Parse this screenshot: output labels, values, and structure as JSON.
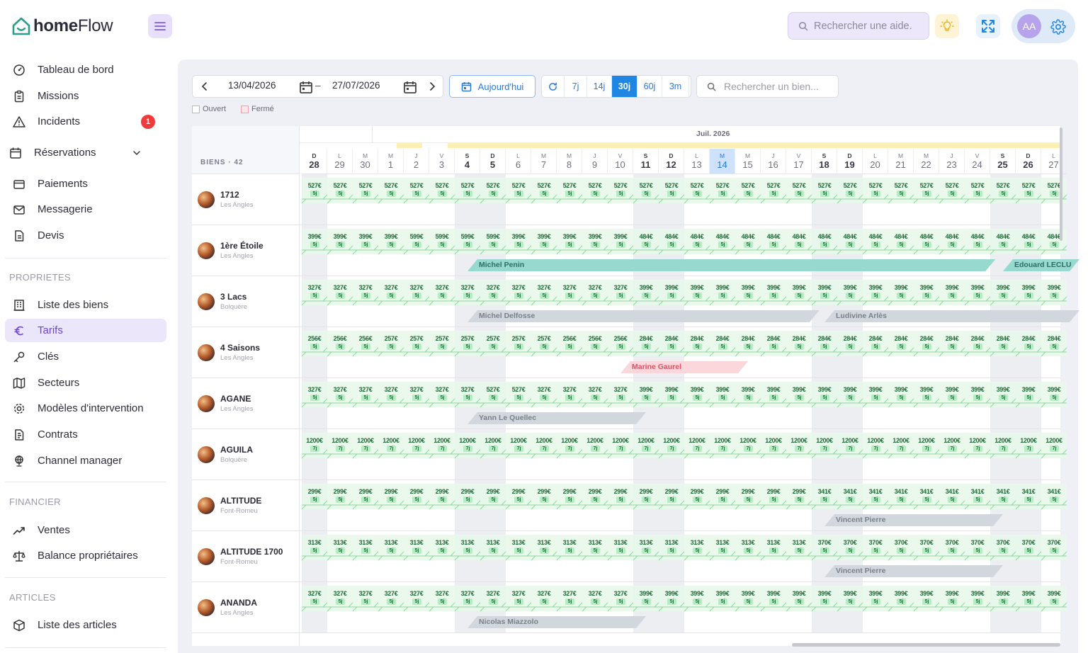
{
  "app": {
    "logo_bold": "home",
    "logo_light": "Flow"
  },
  "sidebar": {
    "items": [
      {
        "label": "Tableau de bord",
        "icon": "dashboard-icon"
      },
      {
        "label": "Missions",
        "icon": "clipboard-icon"
      },
      {
        "label": "Incidents",
        "icon": "warning-icon",
        "badge": "1"
      },
      {
        "label": "Réservations",
        "icon": "calendar-icon"
      },
      {
        "label": "Paiements",
        "icon": "wallet-icon"
      },
      {
        "label": "Messagerie",
        "icon": "mail-icon"
      },
      {
        "label": "Devis",
        "icon": "document-icon"
      }
    ],
    "sections": [
      {
        "title": "PROPRIETES",
        "items": [
          {
            "label": "Liste des biens",
            "icon": "building-icon"
          },
          {
            "label": "Tarifs",
            "icon": "euro-icon",
            "active": true
          },
          {
            "label": "Clés",
            "icon": "key-icon"
          },
          {
            "label": "Secteurs",
            "icon": "map-icon"
          },
          {
            "label": "Modèles d'intervention",
            "icon": "gear-icon"
          },
          {
            "label": "Contrats",
            "icon": "contract-icon"
          },
          {
            "label": "Channel manager",
            "icon": "globe-icon"
          }
        ]
      },
      {
        "title": "FINANCIER",
        "items": [
          {
            "label": "Ventes",
            "icon": "trend-icon"
          },
          {
            "label": "Balance propriétaires",
            "icon": "scale-icon"
          }
        ]
      },
      {
        "title": "ARTICLES",
        "items": [
          {
            "label": "Liste des articles",
            "icon": "box-icon"
          }
        ]
      }
    ]
  },
  "topbar": {
    "help_search_placeholder": "Rechercher une aide.",
    "avatar_initials": "AA"
  },
  "toolbar": {
    "date_from": "13/04/2026",
    "date_to": "27/07/2026",
    "today_label": "Aujourd'hui",
    "ranges": [
      "7j",
      "14j",
      "30j",
      "60j",
      "3m"
    ],
    "active_range": "30j",
    "property_search_placeholder": "Rechercher un bien...",
    "legend_open": "Ouvert",
    "legend_closed": "Fermé"
  },
  "calendar": {
    "month_label": "Juil. 2026",
    "biens_label": "BIENS · 42",
    "days": [
      {
        "l": "D",
        "n": "28",
        "bold": true
      },
      {
        "l": "L",
        "n": "29"
      },
      {
        "l": "M",
        "n": "30"
      },
      {
        "l": "M",
        "n": "1"
      },
      {
        "l": "J",
        "n": "2"
      },
      {
        "l": "V",
        "n": "3"
      },
      {
        "l": "S",
        "n": "4",
        "bold": true
      },
      {
        "l": "D",
        "n": "5",
        "bold": true
      },
      {
        "l": "L",
        "n": "6"
      },
      {
        "l": "M",
        "n": "7"
      },
      {
        "l": "M",
        "n": "8"
      },
      {
        "l": "J",
        "n": "9"
      },
      {
        "l": "V",
        "n": "10"
      },
      {
        "l": "S",
        "n": "11",
        "bold": true
      },
      {
        "l": "D",
        "n": "12",
        "bold": true
      },
      {
        "l": "L",
        "n": "13"
      },
      {
        "l": "M",
        "n": "14",
        "today": true
      },
      {
        "l": "M",
        "n": "15"
      },
      {
        "l": "J",
        "n": "16"
      },
      {
        "l": "V",
        "n": "17"
      },
      {
        "l": "S",
        "n": "18",
        "bold": true
      },
      {
        "l": "D",
        "n": "19",
        "bold": true
      },
      {
        "l": "L",
        "n": "20"
      },
      {
        "l": "M",
        "n": "21"
      },
      {
        "l": "M",
        "n": "22"
      },
      {
        "l": "J",
        "n": "23"
      },
      {
        "l": "V",
        "n": "24"
      },
      {
        "l": "S",
        "n": "25",
        "bold": true
      },
      {
        "l": "D",
        "n": "26",
        "bold": true
      },
      {
        "l": "L",
        "n": "27"
      }
    ],
    "properties": [
      {
        "name": "1712",
        "location": "Les Angles",
        "min": "5j",
        "prices": [
          "527€",
          "527€",
          "527€",
          "527€",
          "527€",
          "527€",
          "527€",
          "527€",
          "527€",
          "527€",
          "527€",
          "527€",
          "527€",
          "527€",
          "527€",
          "527€",
          "527€",
          "527€",
          "527€",
          "527€",
          "527€",
          "527€",
          "527€",
          "527€",
          "527€",
          "527€",
          "527€",
          "527€",
          "527€",
          "527€"
        ],
        "reservations": []
      },
      {
        "name": "1ère Étoile",
        "location": "Les Angles",
        "min": "5j",
        "prices": [
          "399€",
          "399€",
          "399€",
          "399€",
          "599€",
          "599€",
          "599€",
          "599€",
          "399€",
          "399€",
          "399€",
          "399€",
          "399€",
          "484€",
          "484€",
          "484€",
          "484€",
          "484€",
          "484€",
          "484€",
          "484€",
          "484€",
          "484€",
          "484€",
          "484€",
          "484€",
          "484€",
          "484€",
          "484€",
          "484€"
        ],
        "reservations": [
          {
            "guest": "Michel Penin",
            "color": "teal",
            "start": 6,
            "end": 27.2
          },
          {
            "guest": "Edouard LECLU",
            "color": "teal",
            "start": 27,
            "end": 30.5
          }
        ]
      },
      {
        "name": "3 Lacs",
        "location": "Bolquère",
        "min": "5j",
        "prices": [
          "327€",
          "327€",
          "327€",
          "327€",
          "327€",
          "327€",
          "327€",
          "327€",
          "327€",
          "327€",
          "327€",
          "327€",
          "327€",
          "399€",
          "399€",
          "399€",
          "399€",
          "399€",
          "399€",
          "399€",
          "399€",
          "399€",
          "399€",
          "399€",
          "399€",
          "399€",
          "399€",
          "399€",
          "399€",
          "399€"
        ],
        "reservations": [
          {
            "guest": "Michel Delfosse",
            "color": "grey",
            "start": 6,
            "end": 20.3
          },
          {
            "guest": "Ludivine Arlès",
            "color": "grey",
            "start": 20,
            "end": 30.5
          }
        ]
      },
      {
        "name": "4 Saisons",
        "location": "Les Angles",
        "min": "5j",
        "prices": [
          "256€",
          "256€",
          "256€",
          "257€",
          "257€",
          "257€",
          "257€",
          "257€",
          "257€",
          "257€",
          "256€",
          "256€",
          "256€",
          "284€",
          "284€",
          "284€",
          "284€",
          "284€",
          "284€",
          "284€",
          "284€",
          "284€",
          "284€",
          "284€",
          "284€",
          "284€",
          "284€",
          "284€",
          "284€",
          "284€"
        ],
        "reservations": [
          {
            "guest": "Marine Gaurel",
            "color": "pink",
            "start": 12,
            "end": 17.5
          }
        ]
      },
      {
        "name": "AGANE",
        "location": "Les Angles",
        "min": "5j",
        "prices": [
          "327€",
          "327€",
          "327€",
          "327€",
          "327€",
          "327€",
          "327€",
          "527€",
          "527€",
          "327€",
          "327€",
          "327€",
          "327€",
          "399€",
          "399€",
          "399€",
          "399€",
          "399€",
          "399€",
          "399€",
          "399€",
          "399€",
          "399€",
          "399€",
          "399€",
          "399€",
          "399€",
          "399€",
          "399€",
          "399€"
        ],
        "reservations": [
          {
            "guest": "Yann Le Quellec",
            "color": "grey",
            "start": 6,
            "end": 13.5
          }
        ]
      },
      {
        "name": "AGUILA",
        "location": "Bolquère",
        "min": "7j",
        "prices": [
          "1200€",
          "1200€",
          "1200€",
          "1200€",
          "1200€",
          "1200€",
          "1200€",
          "1200€",
          "1200€",
          "1200€",
          "1200€",
          "1200€",
          "1200€",
          "1200€",
          "1200€",
          "1200€",
          "1200€",
          "1200€",
          "1200€",
          "1200€",
          "1200€",
          "1200€",
          "1200€",
          "1200€",
          "1200€",
          "1200€",
          "1200€",
          "1200€",
          "1200€",
          "1200€"
        ],
        "reservations": []
      },
      {
        "name": "ALTITUDE",
        "location": "Font-Romeu",
        "min": "5j",
        "prices": [
          "299€",
          "299€",
          "299€",
          "299€",
          "299€",
          "299€",
          "299€",
          "299€",
          "299€",
          "299€",
          "299€",
          "299€",
          "299€",
          "299€",
          "299€",
          "299€",
          "299€",
          "299€",
          "299€",
          "299€",
          "341€",
          "341€",
          "341€",
          "341€",
          "341€",
          "341€",
          "341€",
          "341€",
          "341€",
          "341€"
        ],
        "reservations": [
          {
            "guest": "Vincent Pierre",
            "color": "grey",
            "start": 20,
            "end": 27.5
          }
        ]
      },
      {
        "name": "ALTITUDE 1700",
        "location": "Font-Romeu",
        "min": "5j",
        "prices": [
          "313€",
          "313€",
          "313€",
          "313€",
          "313€",
          "313€",
          "313€",
          "313€",
          "313€",
          "313€",
          "313€",
          "313€",
          "313€",
          "313€",
          "313€",
          "313€",
          "313€",
          "313€",
          "313€",
          "313€",
          "370€",
          "370€",
          "370€",
          "370€",
          "370€",
          "370€",
          "370€",
          "370€",
          "370€",
          "370€"
        ],
        "reservations": [
          {
            "guest": "Vincent Pierre",
            "color": "grey",
            "start": 20,
            "end": 27.5
          }
        ]
      },
      {
        "name": "ANANDA",
        "location": "Les Angles",
        "min": "5j",
        "prices": [
          "327€",
          "327€",
          "327€",
          "327€",
          "327€",
          "327€",
          "327€",
          "327€",
          "327€",
          "327€",
          "327€",
          "327€",
          "327€",
          "399€",
          "399€",
          "399€",
          "399€",
          "399€",
          "399€",
          "399€",
          "399€",
          "399€",
          "399€",
          "399€",
          "399€",
          "399€",
          "399€",
          "399€",
          "399€",
          "399€"
        ],
        "reservations": [
          {
            "guest": "Nicolas Miazzolo",
            "color": "grey",
            "start": 6,
            "end": 13.5
          }
        ]
      }
    ]
  }
}
